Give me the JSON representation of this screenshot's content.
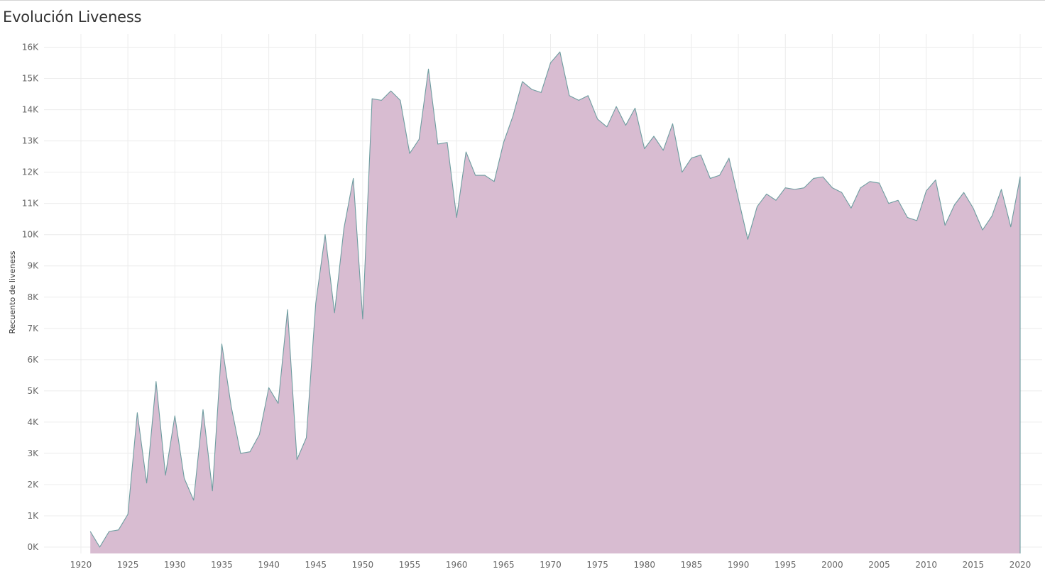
{
  "chart_data": {
    "type": "area",
    "title": "Evolución Liveness",
    "xlabel": "",
    "ylabel": "Recuento de liveness",
    "xlim": [
      1915,
      2022
    ],
    "ylim": [
      -200,
      16500
    ],
    "grid": true,
    "legend": "none",
    "colors": {
      "fill": "#d8bcd1",
      "line": "#6e9da0",
      "grid": "#ececec"
    },
    "x_ticks": [
      1920,
      1925,
      1930,
      1935,
      1940,
      1945,
      1950,
      1955,
      1960,
      1965,
      1970,
      1975,
      1980,
      1985,
      1990,
      1995,
      2000,
      2005,
      2010,
      2015,
      2020
    ],
    "x_tick_labels": [
      "1920",
      "1925",
      "1930",
      "1935",
      "1940",
      "1945",
      "1950",
      "1955",
      "1960",
      "1965",
      "1970",
      "1975",
      "1980",
      "1985",
      "1990",
      "1995",
      "2000",
      "2005",
      "2010",
      "2015",
      "2020"
    ],
    "y_ticks": [
      0,
      1000,
      2000,
      3000,
      4000,
      5000,
      6000,
      7000,
      8000,
      9000,
      10000,
      11000,
      12000,
      13000,
      14000,
      15000,
      16000
    ],
    "y_tick_labels": [
      "0K",
      "1K",
      "2K",
      "3K",
      "4K",
      "5K",
      "6K",
      "7K",
      "8K",
      "9K",
      "10K",
      "11K",
      "12K",
      "13K",
      "14K",
      "15K",
      "16K"
    ],
    "x": [
      1921,
      1922,
      1923,
      1924,
      1925,
      1926,
      1927,
      1928,
      1929,
      1930,
      1931,
      1932,
      1933,
      1934,
      1935,
      1936,
      1937,
      1938,
      1939,
      1940,
      1941,
      1942,
      1943,
      1944,
      1945,
      1946,
      1947,
      1948,
      1949,
      1950,
      1951,
      1952,
      1953,
      1954,
      1955,
      1956,
      1957,
      1958,
      1959,
      1960,
      1961,
      1962,
      1963,
      1964,
      1965,
      1966,
      1967,
      1968,
      1969,
      1970,
      1971,
      1972,
      1973,
      1974,
      1975,
      1976,
      1977,
      1978,
      1979,
      1980,
      1981,
      1982,
      1983,
      1984,
      1985,
      1986,
      1987,
      1988,
      1989,
      1990,
      1991,
      1992,
      1993,
      1994,
      1995,
      1996,
      1997,
      1998,
      1999,
      2000,
      2001,
      2002,
      2003,
      2004,
      2005,
      2006,
      2007,
      2008,
      2009,
      2010,
      2011,
      2012,
      2013,
      2014,
      2015,
      2016,
      2017,
      2018,
      2019,
      2020
    ],
    "values": [
      500,
      0,
      500,
      550,
      1050,
      4300,
      2050,
      5300,
      2300,
      4200,
      2200,
      1500,
      4400,
      1800,
      6500,
      4500,
      3000,
      3050,
      3600,
      5100,
      4600,
      7600,
      2800,
      3500,
      7800,
      10000,
      7500,
      10200,
      11800,
      7300,
      14350,
      14300,
      14600,
      14300,
      12600,
      13050,
      15300,
      12900,
      12950,
      10550,
      12650,
      11900,
      11900,
      11700,
      12950,
      13800,
      14900,
      14650,
      14550,
      15500,
      15850,
      14450,
      14300,
      14450,
      13700,
      13450,
      14100,
      13500,
      14050,
      12750,
      13150,
      12700,
      13550,
      12000,
      12450,
      12550,
      11800,
      11900,
      12450,
      11150,
      9850,
      10900,
      11300,
      11100,
      11500,
      11450,
      11500,
      11800,
      11850,
      11500,
      11350,
      10850,
      11500,
      11700,
      11650,
      11000,
      11100,
      10550,
      10450,
      11400,
      11750,
      10300,
      10950,
      11350,
      10850,
      10150,
      10600,
      11450,
      10250,
      11850
    ]
  }
}
